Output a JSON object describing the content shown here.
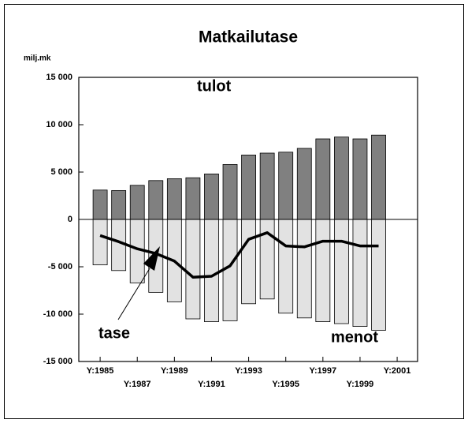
{
  "chart_data": {
    "type": "bar-line",
    "title": "Matkailutase",
    "y_label": "milj.mk",
    "x": [
      1985,
      1986,
      1987,
      1988,
      1989,
      1990,
      1991,
      1992,
      1993,
      1994,
      1995,
      1996,
      1997,
      1998,
      1999,
      2000
    ],
    "series": [
      {
        "name": "tulot",
        "color": "#808080",
        "kind": "bar",
        "values": [
          3100,
          3050,
          3600,
          4100,
          4300,
          4400,
          4800,
          5800,
          6800,
          7000,
          7100,
          7500,
          8500,
          8700,
          8500,
          8900
        ]
      },
      {
        "name": "menot",
        "color": "#e2e2e2",
        "kind": "bar",
        "values": [
          -4800,
          -5400,
          -6700,
          -7700,
          -8700,
          -10500,
          -10800,
          -10700,
          -8900,
          -8400,
          -9900,
          -10400,
          -10800,
          -11000,
          -11300,
          -11700
        ]
      },
      {
        "name": "tase",
        "color": "#000000",
        "kind": "line",
        "values": [
          -1700,
          -2350,
          -3100,
          -3600,
          -4400,
          -6100,
          -6000,
          -4900,
          -2100,
          -1400,
          -2800,
          -2900,
          -2300,
          -2300,
          -2800,
          -2800
        ]
      }
    ],
    "xlim": [
      1983.85,
      2002.1
    ],
    "ylim": [
      -15000,
      15000
    ],
    "yticks": [
      {
        "value": -15000,
        "label": "-15 000"
      },
      {
        "value": -10000,
        "label": "-10 000"
      },
      {
        "value": -5000,
        "label": "-5 000"
      },
      0,
      {
        "value": 5000,
        "label": "5 000"
      },
      {
        "value": 10000,
        "label": "10 000"
      },
      {
        "value": 15000,
        "label": "15 000"
      }
    ],
    "xticks": [
      {
        "value": 1985,
        "label": "Y:1985"
      },
      {
        "value": 1987,
        "label": "Y:1987"
      },
      {
        "value": 1989,
        "label": "Y:1989"
      },
      {
        "value": 1991,
        "label": "Y:1991"
      },
      {
        "value": 1993,
        "label": "Y:1993"
      },
      {
        "value": 1995,
        "label": "Y:1995"
      },
      {
        "value": 1997,
        "label": "Y:1997"
      },
      {
        "value": 1999,
        "label": "Y:1999"
      },
      {
        "value": 2001,
        "label": "Y:2001"
      }
    ]
  }
}
